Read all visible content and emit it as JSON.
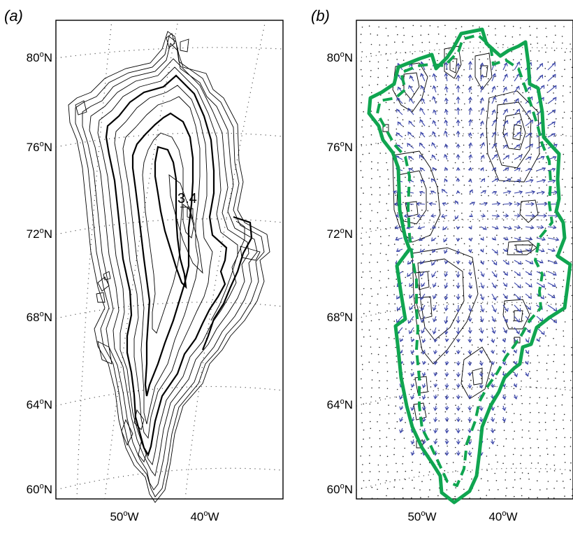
{
  "panels": [
    {
      "label": "(a)",
      "lat_ticks": [
        {
          "deg": "80",
          "hemi": "N"
        },
        {
          "deg": "76",
          "hemi": "N"
        },
        {
          "deg": "72",
          "hemi": "N"
        },
        {
          "deg": "68",
          "hemi": "N"
        },
        {
          "deg": "64",
          "hemi": "N"
        },
        {
          "deg": "60",
          "hemi": "N"
        }
      ],
      "lon_ticks": [
        {
          "deg": "50",
          "hemi": "W"
        },
        {
          "deg": "40",
          "hemi": "W"
        }
      ],
      "contour_label": "3.4"
    },
    {
      "label": "(b)",
      "lat_ticks": [
        {
          "deg": "80",
          "hemi": "N"
        },
        {
          "deg": "76",
          "hemi": "N"
        },
        {
          "deg": "72",
          "hemi": "N"
        },
        {
          "deg": "68",
          "hemi": "N"
        },
        {
          "deg": "64",
          "hemi": "N"
        },
        {
          "deg": "60",
          "hemi": "N"
        }
      ],
      "lon_ticks": [
        {
          "deg": "50",
          "hemi": "W"
        },
        {
          "deg": "40",
          "hemi": "W"
        }
      ]
    }
  ],
  "colors": {
    "outline_green": "#10a550",
    "arrow_blue": "#3a45a8",
    "contour": "#000000"
  },
  "degree_symbol": "o"
}
